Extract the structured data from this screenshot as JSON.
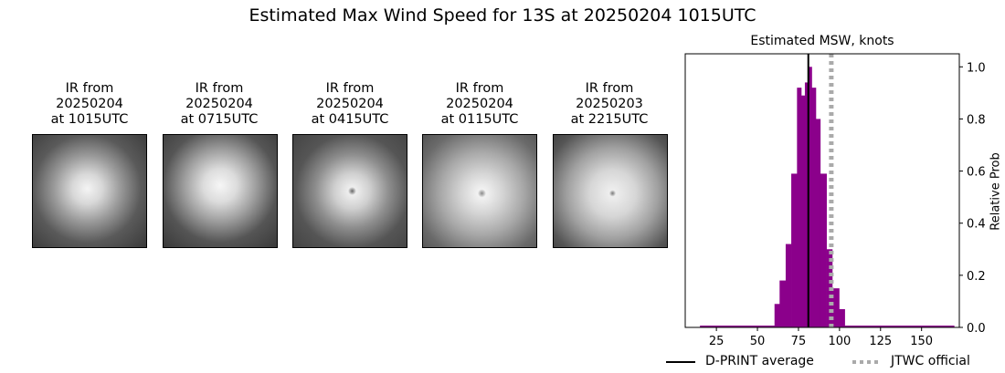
{
  "title": "Estimated Max Wind Speed for 13S at 20250204 1015UTC",
  "panels": [
    {
      "l1": "IR from",
      "l2": "20250204",
      "l3": "at 1015UTC"
    },
    {
      "l1": "IR from",
      "l2": "20250204",
      "l3": "at 0715UTC"
    },
    {
      "l1": "IR from",
      "l2": "20250204",
      "l3": "at 0415UTC"
    },
    {
      "l1": "IR from",
      "l2": "20250204",
      "l3": "at 0115UTC"
    },
    {
      "l1": "IR from",
      "l2": "20250203",
      "l3": "at 2215UTC"
    }
  ],
  "chart_data": {
    "type": "bar",
    "title": "Estimated MSW, knots",
    "ylabel": "Relative Prob",
    "xlim": [
      6,
      173
    ],
    "ylim": [
      0,
      1.05
    ],
    "xticks": [
      25,
      50,
      75,
      100,
      125,
      150
    ],
    "yticks": [
      0.0,
      0.2,
      0.4,
      0.6,
      0.8,
      1.0
    ],
    "baseline_range": [
      15,
      170
    ],
    "bins": [
      {
        "x0": 60.4,
        "x1": 63.5,
        "value": 0.09
      },
      {
        "x0": 63.5,
        "x1": 67.2,
        "value": 0.18
      },
      {
        "x0": 67.2,
        "x1": 70.6,
        "value": 0.32
      },
      {
        "x0": 70.6,
        "x1": 74.1,
        "value": 0.59
      },
      {
        "x0": 74.1,
        "x1": 76.7,
        "value": 0.92
      },
      {
        "x0": 76.7,
        "x1": 78.9,
        "value": 0.89
      },
      {
        "x0": 78.9,
        "x1": 80.7,
        "value": 0.94
      },
      {
        "x0": 80.7,
        "x1": 83.1,
        "value": 1.0
      },
      {
        "x0": 83.1,
        "x1": 85.6,
        "value": 0.92
      },
      {
        "x0": 85.6,
        "x1": 88.3,
        "value": 0.8
      },
      {
        "x0": 88.3,
        "x1": 92.1,
        "value": 0.59
      },
      {
        "x0": 92.1,
        "x1": 95.6,
        "value": 0.3
      },
      {
        "x0": 95.6,
        "x1": 99.8,
        "value": 0.15
      },
      {
        "x0": 99.8,
        "x1": 103.2,
        "value": 0.07
      }
    ],
    "dprint_average": 81,
    "jtwc_official": 95,
    "bar_color": "#8b008b",
    "legend": {
      "dprint": "D-PRINT average",
      "jtwc": "JTWC official",
      "placement": "bottom"
    }
  }
}
